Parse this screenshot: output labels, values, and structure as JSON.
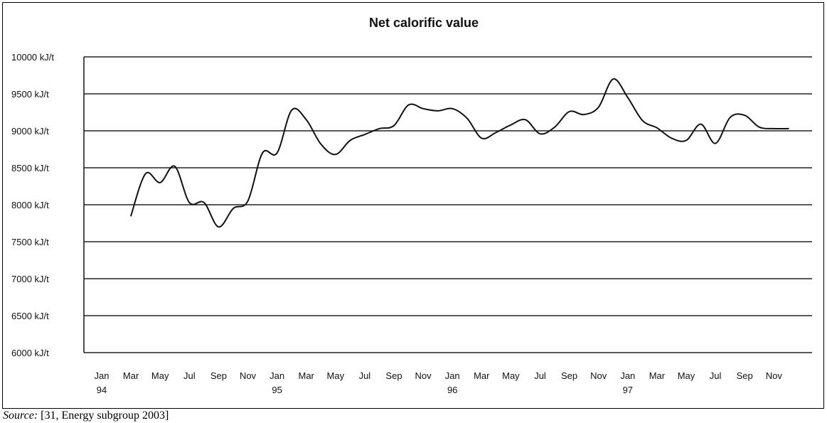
{
  "chart_data": {
    "type": "line",
    "title": "Net calorific value",
    "xlabel": "",
    "ylabel": "",
    "ylim": [
      6000,
      10000
    ],
    "y_ticks": [
      6000,
      6500,
      7000,
      7500,
      8000,
      8500,
      9000,
      9500,
      10000
    ],
    "y_tick_labels": [
      "6000 kJ/t",
      "6500 kJ/t",
      "7000 kJ/t",
      "7500 kJ/t",
      "8000 kJ/t",
      "8500 kJ/t",
      "9000 kJ/t",
      "9500 kJ/t",
      "10000 kJ/t"
    ],
    "x_tick_labels": [
      {
        "month": "Jan",
        "year": "94"
      },
      {
        "month": "Mar"
      },
      {
        "month": "May"
      },
      {
        "month": "Jul"
      },
      {
        "month": "Sep"
      },
      {
        "month": "Nov"
      },
      {
        "month": "Jan",
        "year": "95"
      },
      {
        "month": "Mar"
      },
      {
        "month": "May"
      },
      {
        "month": "Jul"
      },
      {
        "month": "Sep"
      },
      {
        "month": "Nov"
      },
      {
        "month": "Jan",
        "year": "96"
      },
      {
        "month": "Mar"
      },
      {
        "month": "May"
      },
      {
        "month": "Jul"
      },
      {
        "month": "Sep"
      },
      {
        "month": "Nov"
      },
      {
        "month": "Jan",
        "year": "97"
      },
      {
        "month": "Mar"
      },
      {
        "month": "May"
      },
      {
        "month": "Jul"
      },
      {
        "month": "Sep"
      },
      {
        "month": "Nov"
      }
    ],
    "grid": true,
    "legend": "none",
    "series": [
      {
        "x": [
          "1994-03",
          "1994-04",
          "1994-05",
          "1994-06",
          "1994-07",
          "1994-08",
          "1994-09",
          "1994-10",
          "1994-11",
          "1994-12",
          "1995-01",
          "1995-02",
          "1995-03",
          "1995-04",
          "1995-05",
          "1995-06",
          "1995-07",
          "1995-08",
          "1995-09",
          "1995-10",
          "1995-11",
          "1995-12",
          "1996-01",
          "1996-02",
          "1996-03",
          "1996-04",
          "1996-05",
          "1996-06",
          "1996-07",
          "1996-08",
          "1996-09",
          "1996-10",
          "1996-11",
          "1996-12",
          "1997-01",
          "1997-02",
          "1997-03",
          "1997-04",
          "1997-05",
          "1997-06",
          "1997-07",
          "1997-08",
          "1997-09",
          "1997-10",
          "1997-11",
          "1997-12"
        ],
        "values": [
          7850,
          8420,
          8300,
          8520,
          8030,
          8030,
          7700,
          7950,
          8050,
          8700,
          8700,
          9280,
          9150,
          8820,
          8680,
          8870,
          8950,
          9030,
          9070,
          9350,
          9300,
          9270,
          9300,
          9170,
          8900,
          8980,
          9080,
          9150,
          8960,
          9050,
          9260,
          9220,
          9320,
          9700,
          9450,
          9140,
          9040,
          8900,
          8870,
          9090,
          8830,
          9180,
          9210,
          9050,
          9030,
          9030
        ]
      }
    ]
  },
  "source": {
    "label": "Source:",
    "text": " [31, Energy subgroup 2003]"
  }
}
